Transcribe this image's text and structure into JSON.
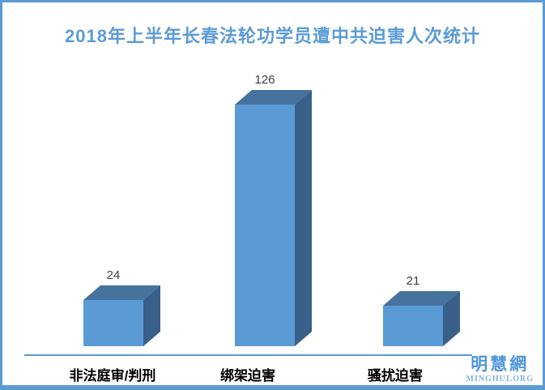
{
  "frame": {
    "background": "#FFFFFF",
    "border_color": "#5B9BD5"
  },
  "chart_data": {
    "type": "bar",
    "style": "3d-column",
    "title": "2018年上半年长春法轮功学员遭中共迫害人次统计",
    "categories": [
      "非法庭审/判刑",
      "绑架迫害",
      "骚扰迫害"
    ],
    "values": [
      24,
      126,
      21
    ],
    "xlabel": "",
    "ylabel": "",
    "ylim": [
      0,
      126
    ],
    "grid": false,
    "legend": false,
    "value_labels_shown": true,
    "colors": {
      "bar_front": "#5B9BD5",
      "bar_top": "#45739E",
      "bar_side": "#386089",
      "axis_line": "#5B9BD5",
      "title": "#5B9BD5",
      "value_label": "#3F3F3F",
      "category_label": "#000000"
    }
  },
  "watermark": {
    "site_name_cn": "明慧網",
    "site_name_en": "MINGHUI.ORG",
    "color_cn": "#4F95DC",
    "color_en": "#7FB0E3"
  }
}
